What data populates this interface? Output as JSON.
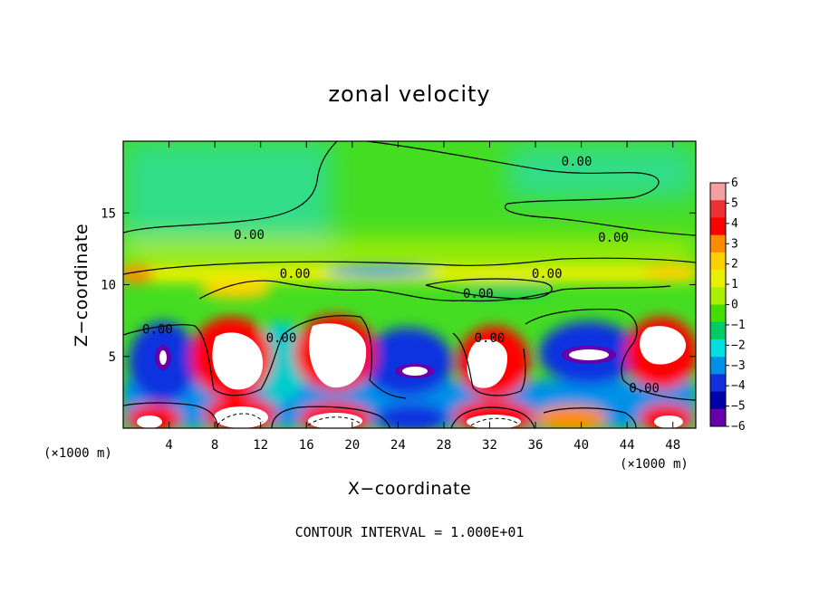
{
  "chart_data": {
    "type": "heatmap",
    "title": "zonal velocity",
    "xlabel": "X−coordinate",
    "ylabel": "Z−coordinate",
    "x_unit_left": "(×1000 m)",
    "x_unit_right": "(×1000 m)",
    "xlim": [
      0,
      50
    ],
    "ylim": [
      0,
      20
    ],
    "x_ticks": [
      4,
      8,
      12,
      16,
      20,
      24,
      28,
      32,
      36,
      40,
      44,
      48
    ],
    "y_ticks": [
      5,
      10,
      15
    ],
    "colorbar": {
      "ticks": [
        "6",
        "5",
        "4",
        "3",
        "2",
        "1",
        "0",
        "−1",
        "−2",
        "−3",
        "−4",
        "−5",
        "−6"
      ],
      "colors": [
        "#f4a0a0",
        "#ee3030",
        "#ff0000",
        "#ff8c00",
        "#ffd000",
        "#e8f000",
        "#aaee00",
        "#44dd00",
        "#00cc66",
        "#00e0e0",
        "#0090e8",
        "#1030e0",
        "#0000a8",
        "#6600aa"
      ]
    },
    "contour_labels": [
      {
        "text": "0.00",
        "x": 11.0,
        "z": 13.5
      },
      {
        "text": "0.00",
        "x": 39.6,
        "z": 18.6
      },
      {
        "text": "0.00",
        "x": 42.8,
        "z": 13.3
      },
      {
        "text": "0.00",
        "x": 15.0,
        "z": 10.8
      },
      {
        "text": "0.00",
        "x": 37.0,
        "z": 10.8
      },
      {
        "text": "0.00",
        "x": 31.0,
        "z": 9.4
      },
      {
        "text": "0.00",
        "x": 3.0,
        "z": 6.9
      },
      {
        "text": "0.00",
        "x": 13.8,
        "z": 6.3
      },
      {
        "text": "0.00",
        "x": 32.0,
        "z": 6.3
      },
      {
        "text": "0.00",
        "x": 45.5,
        "z": 2.8
      }
    ],
    "note": "CONTOUR INTERVAL = 1.000E+01"
  }
}
